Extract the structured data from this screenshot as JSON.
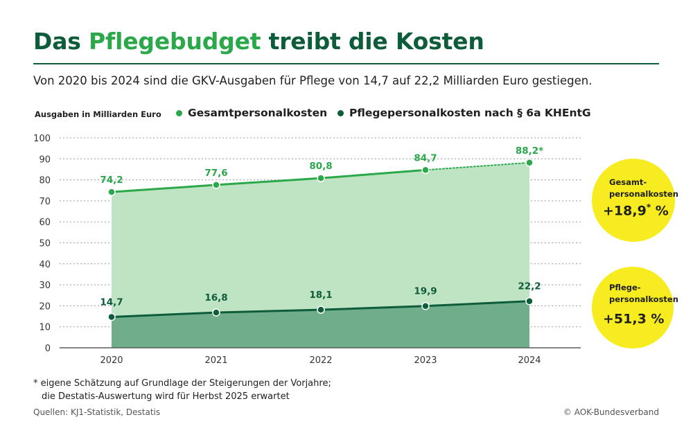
{
  "title": {
    "prefix": "Das ",
    "highlight": "Pflegebudget",
    "suffix": " treibt die Kosten"
  },
  "subtitle": "Von 2020 bis 2024 sind die GKV-Ausgaben für Pflege von 14,7 auf 22,2 Milliarden Euro gestiegen.",
  "colors": {
    "dark_green": "#0d5c3a",
    "light_green": "#2aa84a",
    "area_light": "#bfe4c3",
    "area_dark": "#6fad8b",
    "yellow": "#f7ec1f"
  },
  "chart_data": {
    "type": "area",
    "ylabel": "Ausgaben in Milliarden Euro",
    "ylim": [
      0,
      100
    ],
    "yticks": [
      0,
      10,
      20,
      30,
      40,
      50,
      60,
      70,
      80,
      90,
      100
    ],
    "categories": [
      "2020",
      "2021",
      "2022",
      "2023",
      "2024"
    ],
    "series": [
      {
        "name": "Gesamtpersonalkosten",
        "values": [
          74.2,
          77.6,
          80.8,
          84.7,
          88.2
        ],
        "labels": [
          "74,2",
          "77,6",
          "80,8",
          "84,7",
          "88,2*"
        ],
        "estimated_last": true
      },
      {
        "name": "Pflegepersonalkosten nach § 6a KHEntG",
        "values": [
          14.7,
          16.8,
          18.1,
          19.9,
          22.2
        ],
        "labels": [
          "14,7",
          "16,8",
          "18,1",
          "19,9",
          "22,2"
        ],
        "estimated_last": false
      }
    ]
  },
  "bubbles": [
    {
      "label_line1": "Gesamt-",
      "label_line2": "personalkosten",
      "value": "+18,9",
      "sup": "*",
      "unit": " %"
    },
    {
      "label_line1": "Pflege-",
      "label_line2": "personalkosten",
      "value": "+51,3",
      "sup": "",
      "unit": " %"
    }
  ],
  "footnote": {
    "line1": "* eigene Schätzung auf Grundlage der Steigerungen der Vorjahre;",
    "line2": "die Destatis-Auswertung wird für Herbst 2025 erwartet"
  },
  "sources": "Quellen: KJ1-Statistik, Destatis",
  "copyright": "© AOK-Bundesverband"
}
